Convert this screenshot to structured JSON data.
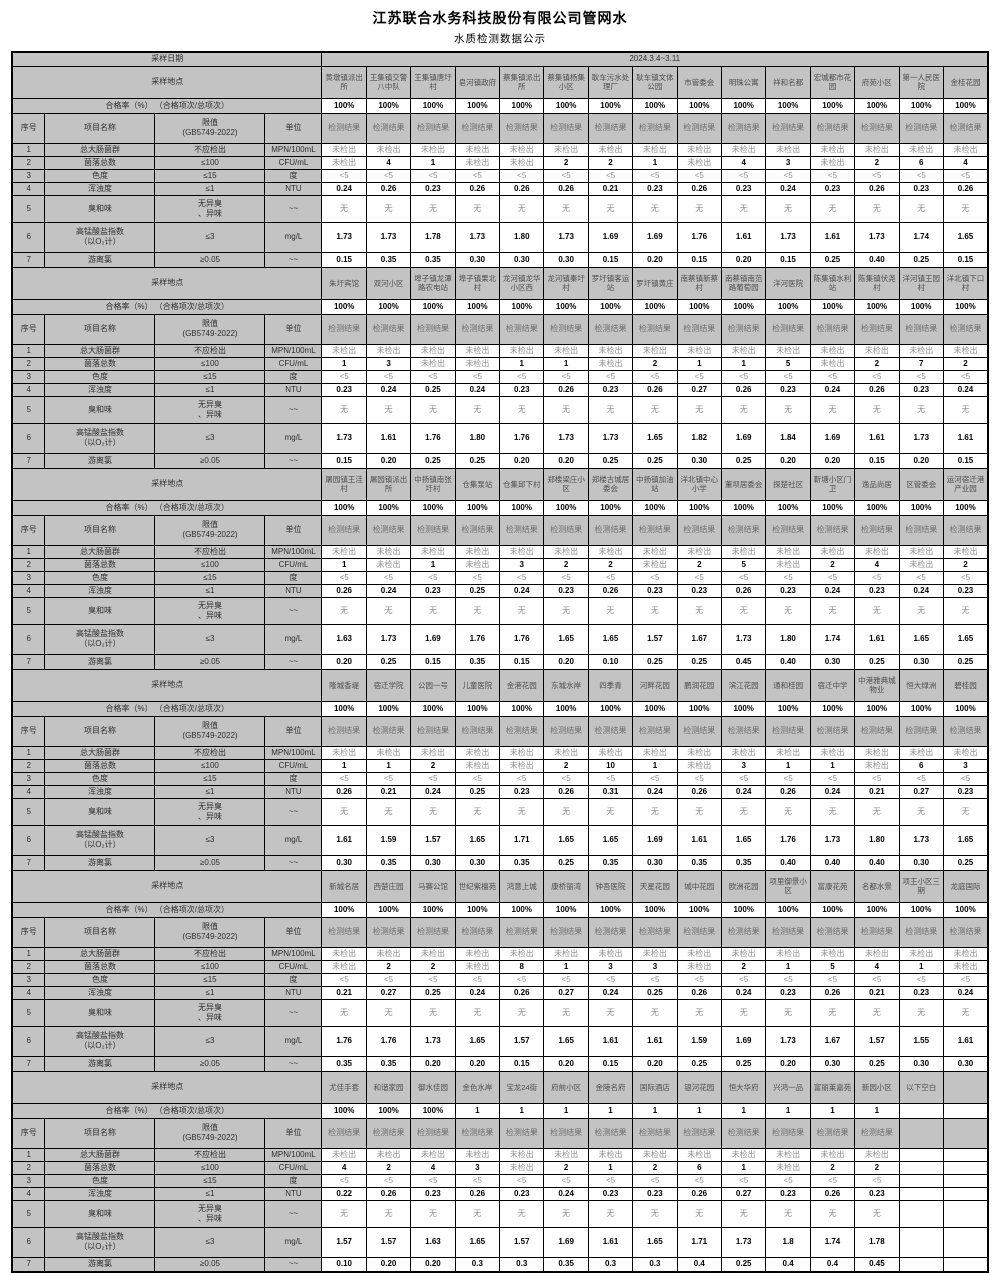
{
  "title": "江苏联合水务科技股份有限公司管网水",
  "subtitle": "水质检测数据公示",
  "labels": {
    "sample_date": "采样日期",
    "date_value": "2024.3.4~3.11",
    "sample_location": "采样地点",
    "pass_rate": "合格率（%） （合格项次/总项次）",
    "seq": "序号",
    "item_name": "项目名称",
    "limit_full": "限值\n(GB5749-2022)",
    "unit": "单位",
    "result": "检测结果"
  },
  "parameters": [
    {
      "no": "1",
      "name": "总大肠菌群",
      "limit": "不应检出",
      "unit": "MPN/100mL"
    },
    {
      "no": "2",
      "name": "菌落总数",
      "limit": "≤100",
      "unit": "CFU/mL"
    },
    {
      "no": "3",
      "name": "色度",
      "limit": "≤15",
      "unit": "度"
    },
    {
      "no": "4",
      "name": "浑浊度",
      "limit": "≤1",
      "unit": "NTU"
    },
    {
      "no": "5",
      "name": "臭和味",
      "limit": "无异臭\n、异味",
      "unit": "~~"
    },
    {
      "no": "6",
      "name": "高锰酸盐指数\n（以O₂计）",
      "limit": "≤3",
      "unit": "mg/L"
    },
    {
      "no": "7",
      "name": "游离氯",
      "limit": "≥0.05",
      "unit": "~~"
    }
  ],
  "sections": [
    {
      "result_cols": 15,
      "locations": [
        "黄墩镇派出所",
        "王集镇交警八中队",
        "王集镇唐圩村",
        "皂河镇政府",
        "蔡集镇派出所",
        "蔡集镇杨集小区",
        "耿车污水处理厂",
        "耿车镇文体公园",
        "市管委会",
        "明珠公寓",
        "祥和名都",
        "宏城都市花园",
        "府苑小区",
        "第一人民医院",
        "金桂花园"
      ],
      "pass_rates": [
        "100%",
        "100%",
        "100%",
        "100%",
        "100%",
        "100%",
        "100%",
        "100%",
        "100%",
        "100%",
        "100%",
        "100%",
        "100%",
        "100%",
        "100%"
      ],
      "results": [
        [
          "未检出",
          "未检出",
          "未检出",
          "未检出",
          "未检出",
          "未检出",
          "未检出",
          "未检出",
          "未检出",
          "未检出",
          "未检出",
          "未检出",
          "未检出",
          "未检出",
          "未检出"
        ],
        [
          "未检出",
          "4",
          "1",
          "未检出",
          "未检出",
          "2",
          "2",
          "1",
          "未检出",
          "4",
          "3",
          "未检出",
          "2",
          "6",
          "4"
        ],
        [
          "<5",
          "<5",
          "<5",
          "<5",
          "<5",
          "<5",
          "<5",
          "<5",
          "<5",
          "<5",
          "<5",
          "<5",
          "<5",
          "<5",
          "<5"
        ],
        [
          "0.24",
          "0.26",
          "0.23",
          "0.26",
          "0.26",
          "0.26",
          "0.21",
          "0.23",
          "0.26",
          "0.23",
          "0.24",
          "0.23",
          "0.26",
          "0.23",
          "0.26"
        ],
        [
          "无",
          "无",
          "无",
          "无",
          "无",
          "无",
          "无",
          "无",
          "无",
          "无",
          "无",
          "无",
          "无",
          "无",
          "无"
        ],
        [
          "1.73",
          "1.73",
          "1.78",
          "1.73",
          "1.80",
          "1.73",
          "1.69",
          "1.69",
          "1.76",
          "1.61",
          "1.73",
          "1.61",
          "1.73",
          "1.74",
          "1.65"
        ],
        [
          "0.15",
          "0.35",
          "0.35",
          "0.30",
          "0.30",
          "0.30",
          "0.15",
          "0.20",
          "0.15",
          "0.20",
          "0.15",
          "0.25",
          "0.40",
          "0.25",
          "0.15"
        ]
      ]
    },
    {
      "result_cols": 15,
      "locations": [
        "朱圩宾馆",
        "双河小区",
        "埠子镇龙潭路农电站",
        "埠子镇果北村",
        "龙河镇龙华小区西",
        "龙河镇秦圩村",
        "罗圩镇客运站",
        "罗圩镇黄庄",
        "南蔡镇新蔡村",
        "南蔡镇南范路葡萄园",
        "洋河医院",
        "陈集镇水利站",
        "陈集镇伏尧村",
        "洋河镇王园村",
        "洋北镇下口村"
      ],
      "pass_rates": [
        "100%",
        "100%",
        "100%",
        "100%",
        "100%",
        "100%",
        "100%",
        "100%",
        "100%",
        "100%",
        "100%",
        "100%",
        "100%",
        "100%",
        "100%"
      ],
      "results": [
        [
          "未检出",
          "未检出",
          "未检出",
          "未检出",
          "未检出",
          "未检出",
          "未检出",
          "未检出",
          "未检出",
          "未检出",
          "未检出",
          "未检出",
          "未检出",
          "未检出",
          "未检出"
        ],
        [
          "1",
          "3",
          "未检出",
          "未检出",
          "1",
          "1",
          "未检出",
          "2",
          "1",
          "1",
          "5",
          "未检出",
          "2",
          "7",
          "2"
        ],
        [
          "<5",
          "<5",
          "<5",
          "<5",
          "<5",
          "<5",
          "<5",
          "<5",
          "<5",
          "<5",
          "<5",
          "<5",
          "<5",
          "<5",
          "<5"
        ],
        [
          "0.23",
          "0.24",
          "0.25",
          "0.24",
          "0.23",
          "0.26",
          "0.23",
          "0.26",
          "0.27",
          "0.26",
          "0.23",
          "0.24",
          "0.26",
          "0.23",
          "0.24"
        ],
        [
          "无",
          "无",
          "无",
          "无",
          "无",
          "无",
          "无",
          "无",
          "无",
          "无",
          "无",
          "无",
          "无",
          "无",
          "无"
        ],
        [
          "1.73",
          "1.61",
          "1.76",
          "1.80",
          "1.76",
          "1.73",
          "1.73",
          "1.65",
          "1.82",
          "1.69",
          "1.84",
          "1.69",
          "1.61",
          "1.73",
          "1.61"
        ],
        [
          "0.15",
          "0.20",
          "0.25",
          "0.25",
          "0.20",
          "0.20",
          "0.25",
          "0.25",
          "0.30",
          "0.25",
          "0.20",
          "0.20",
          "0.15",
          "0.20",
          "0.15"
        ]
      ]
    },
    {
      "result_cols": 15,
      "locations": [
        "屠园镇王洼村",
        "屠园镇派出所",
        "中扬镇南张圩村",
        "仓集泵站",
        "仓集邱下村",
        "郑楼梁庄小区",
        "郑楼古城居委会",
        "中扬镇加油站",
        "洋北镇中心小学",
        "董坝居委会",
        "探楚社区",
        "靳塘小区门卫",
        "逸品尚居",
        "区管委会",
        "运河宿迁港产业园"
      ],
      "pass_rates": [
        "100%",
        "100%",
        "100%",
        "100%",
        "100%",
        "100%",
        "100%",
        "100%",
        "100%",
        "100%",
        "100%",
        "100%",
        "100%",
        "100%",
        "100%"
      ],
      "results": [
        [
          "未检出",
          "未检出",
          "未检出",
          "未检出",
          "未检出",
          "未检出",
          "未检出",
          "未检出",
          "未检出",
          "未检出",
          "未检出",
          "未检出",
          "未检出",
          "未检出",
          "未检出"
        ],
        [
          "1",
          "未检出",
          "1",
          "未检出",
          "3",
          "2",
          "2",
          "未检出",
          "2",
          "5",
          "未检出",
          "2",
          "4",
          "未检出",
          "2"
        ],
        [
          "<5",
          "<5",
          "<5",
          "<5",
          "<5",
          "<5",
          "<5",
          "<5",
          "<5",
          "<5",
          "<5",
          "<5",
          "<5",
          "<5",
          "<5"
        ],
        [
          "0.26",
          "0.24",
          "0.23",
          "0.25",
          "0.24",
          "0.23",
          "0.26",
          "0.23",
          "0.23",
          "0.26",
          "0.23",
          "0.24",
          "0.23",
          "0.24",
          "0.23"
        ],
        [
          "无",
          "无",
          "无",
          "无",
          "无",
          "无",
          "无",
          "无",
          "无",
          "无",
          "无",
          "无",
          "无",
          "无",
          "无"
        ],
        [
          "1.63",
          "1.73",
          "1.69",
          "1.76",
          "1.76",
          "1.65",
          "1.65",
          "1.57",
          "1.67",
          "1.73",
          "1.80",
          "1.74",
          "1.61",
          "1.65",
          "1.65"
        ],
        [
          "0.20",
          "0.25",
          "0.15",
          "0.35",
          "0.15",
          "0.20",
          "0.10",
          "0.25",
          "0.25",
          "0.45",
          "0.40",
          "0.30",
          "0.25",
          "0.30",
          "0.25"
        ]
      ]
    },
    {
      "result_cols": 15,
      "locations": [
        "隆城香堤",
        "宿迁学院",
        "公园一号",
        "儿童医院",
        "金港花园",
        "东城水岸",
        "四季青",
        "河畔花园",
        "鹏润花园",
        "滨江花园",
        "通和桂园",
        "宿迁中学",
        "中港雅典城物业",
        "恒大绿洲",
        "碧桂园"
      ],
      "pass_rates": [
        "100%",
        "100%",
        "100%",
        "100%",
        "100%",
        "100%",
        "100%",
        "100%",
        "100%",
        "100%",
        "100%",
        "100%",
        "100%",
        "100%",
        "100%"
      ],
      "results": [
        [
          "未检出",
          "未检出",
          "未检出",
          "未检出",
          "未检出",
          "未检出",
          "未检出",
          "未检出",
          "未检出",
          "未检出",
          "未检出",
          "未检出",
          "未检出",
          "未检出",
          "未检出"
        ],
        [
          "1",
          "1",
          "2",
          "未检出",
          "未检出",
          "2",
          "10",
          "1",
          "未检出",
          "3",
          "1",
          "1",
          "未检出",
          "6",
          "3"
        ],
        [
          "<5",
          "<5",
          "<5",
          "<5",
          "<5",
          "<5",
          "<5",
          "<5",
          "<5",
          "<5",
          "<5",
          "<5",
          "<5",
          "<5",
          "<5"
        ],
        [
          "0.26",
          "0.21",
          "0.24",
          "0.25",
          "0.23",
          "0.26",
          "0.31",
          "0.24",
          "0.26",
          "0.24",
          "0.26",
          "0.24",
          "0.21",
          "0.27",
          "0.23"
        ],
        [
          "无",
          "无",
          "无",
          "无",
          "无",
          "无",
          "无",
          "无",
          "无",
          "无",
          "无",
          "无",
          "无",
          "无",
          "无"
        ],
        [
          "1.61",
          "1.59",
          "1.57",
          "1.65",
          "1.71",
          "1.65",
          "1.65",
          "1.69",
          "1.61",
          "1.65",
          "1.76",
          "1.73",
          "1.80",
          "1.73",
          "1.65"
        ],
        [
          "0.30",
          "0.35",
          "0.30",
          "0.30",
          "0.35",
          "0.25",
          "0.35",
          "0.30",
          "0.35",
          "0.35",
          "0.40",
          "0.40",
          "0.40",
          "0.30",
          "0.25"
        ]
      ]
    },
    {
      "result_cols": 15,
      "locations": [
        "新城名居",
        "西楚庄园",
        "马赛公馆",
        "世纪紫檀苑",
        "鸿意上城",
        "康桥丽湾",
        "钟吾医院",
        "天星花园",
        "城中花园",
        "欧洲花园",
        "项里御景小区",
        "富康花苑",
        "名都水景",
        "项王小区三期",
        "龙庭国际"
      ],
      "pass_rates": [
        "100%",
        "100%",
        "100%",
        "100%",
        "100%",
        "100%",
        "100%",
        "100%",
        "100%",
        "100%",
        "100%",
        "100%",
        "100%",
        "100%",
        "100%"
      ],
      "results": [
        [
          "未检出",
          "未检出",
          "未检出",
          "未检出",
          "未检出",
          "未检出",
          "未检出",
          "未检出",
          "未检出",
          "未检出",
          "未检出",
          "未检出",
          "未检出",
          "未检出",
          "未检出"
        ],
        [
          "未检出",
          "2",
          "2",
          "未检出",
          "8",
          "1",
          "3",
          "3",
          "未检出",
          "2",
          "1",
          "5",
          "4",
          "1",
          "未检出"
        ],
        [
          "<5",
          "<5",
          "<5",
          "<5",
          "<5",
          "<5",
          "<5",
          "<5",
          "<5",
          "<5",
          "<5",
          "<5",
          "<5",
          "<5",
          "<5"
        ],
        [
          "0.21",
          "0.27",
          "0.25",
          "0.24",
          "0.26",
          "0.27",
          "0.24",
          "0.25",
          "0.26",
          "0.24",
          "0.23",
          "0.26",
          "0.21",
          "0.23",
          "0.24"
        ],
        [
          "无",
          "无",
          "无",
          "无",
          "无",
          "无",
          "无",
          "无",
          "无",
          "无",
          "无",
          "无",
          "无",
          "无",
          "无"
        ],
        [
          "1.76",
          "1.76",
          "1.73",
          "1.65",
          "1.57",
          "1.65",
          "1.61",
          "1.61",
          "1.59",
          "1.69",
          "1.73",
          "1.67",
          "1.57",
          "1.55",
          "1.61"
        ],
        [
          "0.35",
          "0.35",
          "0.20",
          "0.20",
          "0.15",
          "0.20",
          "0.15",
          "0.20",
          "0.25",
          "0.25",
          "0.20",
          "0.30",
          "0.25",
          "0.30",
          "0.30"
        ]
      ]
    },
    {
      "result_cols": 13,
      "locations": [
        "尤佳手套",
        "和谐家园",
        "御水佳园",
        "金色水岸",
        "宝龙24街",
        "府前小区",
        "金陵名府",
        "国际酒店",
        "银河花园",
        "恒大华府",
        "兴鸿一品",
        "富丽莱嘉苑",
        "新园小区",
        "以下空白",
        ""
      ],
      "pass_rates": [
        "100%",
        "100%",
        "100%",
        "1",
        "1",
        "1",
        "1",
        "1",
        "1",
        "1",
        "1",
        "1",
        "1",
        "",
        ""
      ],
      "results": [
        [
          "未检出",
          "未检出",
          "未检出",
          "未检出",
          "未检出",
          "未检出",
          "未检出",
          "未检出",
          "未检出",
          "未检出",
          "未检出",
          "未检出",
          "未检出",
          "",
          ""
        ],
        [
          "4",
          "2",
          "4",
          "3",
          "未检出",
          "2",
          "1",
          "2",
          "6",
          "1",
          "未检出",
          "2",
          "2",
          "",
          ""
        ],
        [
          "<5",
          "<5",
          "<5",
          "<5",
          "<5",
          "<5",
          "<5",
          "<5",
          "<5",
          "<5",
          "<5",
          "<5",
          "<5",
          "",
          ""
        ],
        [
          "0.22",
          "0.26",
          "0.23",
          "0.26",
          "0.23",
          "0.24",
          "0.23",
          "0.23",
          "0.26",
          "0.27",
          "0.23",
          "0.26",
          "0.23",
          "",
          ""
        ],
        [
          "无",
          "无",
          "无",
          "无",
          "无",
          "无",
          "无",
          "无",
          "无",
          "无",
          "无",
          "无",
          "无",
          "",
          ""
        ],
        [
          "1.57",
          "1.57",
          "1.63",
          "1.65",
          "1.57",
          "1.69",
          "1.61",
          "1.65",
          "1.71",
          "1.73",
          "1.8",
          "1.74",
          "1.78",
          "",
          ""
        ],
        [
          "0.10",
          "0.20",
          "0.20",
          "0.3",
          "0.3",
          "0.35",
          "0.3",
          "0.3",
          "0.4",
          "0.25",
          "0.4",
          "0.4",
          "0.45",
          "",
          ""
        ]
      ]
    }
  ]
}
